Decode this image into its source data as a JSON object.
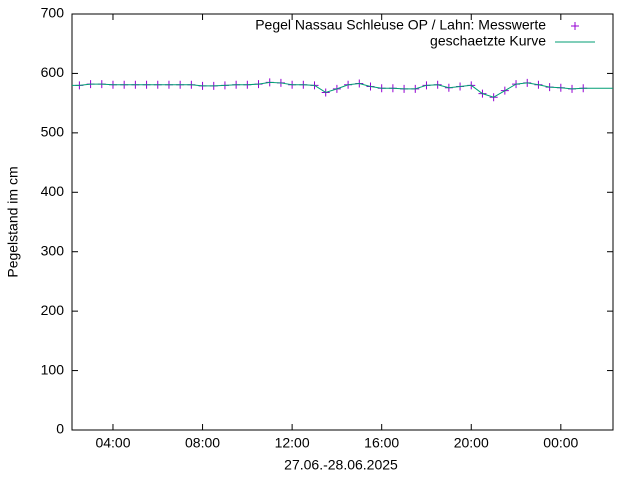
{
  "chart_data": {
    "type": "line",
    "xlabel": "27.06.-28.06.2025",
    "ylabel": "Pegelstand im cm",
    "xlim": [
      2.17,
      26.33
    ],
    "ylim": [
      0,
      700
    ],
    "xticks": [
      {
        "value": 4,
        "label": "04:00"
      },
      {
        "value": 8,
        "label": "08:00"
      },
      {
        "value": 12,
        "label": "12:00"
      },
      {
        "value": 16,
        "label": "16:00"
      },
      {
        "value": 20,
        "label": "20:00"
      },
      {
        "value": 24,
        "label": "00:00"
      }
    ],
    "yticks": [
      0,
      100,
      200,
      300,
      400,
      500,
      600,
      700
    ],
    "grid": false,
    "legend": "top-right",
    "series": [
      {
        "name": "Pegel Nassau Schleuse OP / Lahn: Messwerte",
        "color": "#9400d3",
        "style": "points",
        "x": [
          2.5,
          3,
          3.5,
          4,
          4.5,
          5,
          5.5,
          6,
          6.5,
          7,
          7.5,
          8,
          8.5,
          9,
          9.5,
          10,
          10.5,
          11,
          11.5,
          12,
          12.5,
          13,
          13.5,
          14,
          14.5,
          15,
          15.5,
          16,
          16.5,
          17,
          17.5,
          18,
          18.5,
          19,
          19.5,
          20,
          20.5,
          21,
          21.5,
          22,
          22.5,
          23,
          23.5,
          24,
          24.5,
          25
        ],
        "values": [
          580,
          582,
          582,
          581,
          581,
          581,
          581,
          581,
          581,
          581,
          581,
          579,
          579,
          580,
          581,
          581,
          582,
          585,
          584,
          581,
          581,
          580,
          568,
          574,
          581,
          583,
          578,
          575,
          575,
          574,
          574,
          580,
          581,
          576,
          578,
          580,
          566,
          560,
          571,
          582,
          584,
          581,
          577,
          576,
          574,
          575
        ]
      },
      {
        "name": "geschaetzte Kurve",
        "color": "#009e73",
        "style": "line",
        "x": [
          2.17,
          2.5,
          3,
          3.5,
          4,
          4.5,
          5,
          5.5,
          6,
          6.5,
          7,
          7.5,
          8,
          8.5,
          9,
          9.5,
          10,
          10.5,
          11,
          11.5,
          12,
          12.5,
          13,
          13.5,
          14,
          14.5,
          15,
          15.5,
          16,
          16.5,
          17,
          17.5,
          18,
          18.5,
          19,
          19.5,
          20,
          20.5,
          21,
          21.5,
          22,
          22.5,
          23,
          23.5,
          24,
          24.5,
          25,
          26.33
        ],
        "values": [
          580,
          580,
          582,
          582,
          581,
          581,
          581,
          581,
          581,
          581,
          581,
          581,
          579,
          579,
          580,
          581,
          581,
          582,
          585,
          584,
          581,
          581,
          580,
          568,
          574,
          581,
          583,
          578,
          575,
          575,
          574,
          574,
          580,
          581,
          576,
          578,
          580,
          566,
          560,
          571,
          582,
          584,
          581,
          577,
          576,
          574,
          575,
          575
        ]
      }
    ]
  }
}
